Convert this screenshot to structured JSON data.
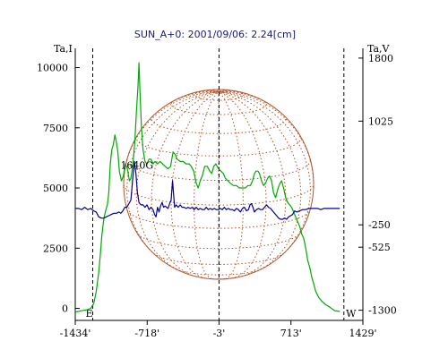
{
  "chart_data": {
    "type": "line",
    "title": "SUN_A+0: 2001/09/06: 2.24[cm]",
    "left_axis": {
      "label": "Ta,I",
      "ticks": [
        0,
        2500,
        5000,
        7500,
        10000
      ],
      "range": [
        -500,
        10800
      ]
    },
    "right_axis": {
      "label": "Ta,V",
      "ticks": [
        1800,
        1025,
        -250,
        -525,
        -1300
      ],
      "range": [
        -1425,
        1920
      ]
    },
    "x_axis": {
      "ticks": [
        "-1434'",
        "-718'",
        "-3'",
        "713'",
        "1429'"
      ],
      "tick_values": [
        -1434,
        -718,
        -3,
        713,
        1429
      ],
      "range": [
        -1434,
        1429
      ]
    },
    "limb_markers": [
      {
        "x": -1260,
        "label": "E"
      },
      {
        "x": -3,
        "label": ""
      },
      {
        "x": 1240,
        "label": "W"
      }
    ],
    "annotations": [
      {
        "text": "1640G",
        "x": -820,
        "y": 5800
      }
    ],
    "colors": {
      "intensity": "#00aa00",
      "polarization": "#000099",
      "disk": "#b0552a",
      "title": "#1a1a7a"
    },
    "series": [
      {
        "axis": "left",
        "color": "#00aa00",
        "points": [
          [
            -1434,
            -150
          ],
          [
            -1370,
            -100
          ],
          [
            -1320,
            -60
          ],
          [
            -1280,
            0
          ],
          [
            -1250,
            200
          ],
          [
            -1225,
            700
          ],
          [
            -1200,
            1500
          ],
          [
            -1185,
            2200
          ],
          [
            -1170,
            3000
          ],
          [
            -1150,
            3700
          ],
          [
            -1135,
            4000
          ],
          [
            -1115,
            4300
          ],
          [
            -1100,
            4800
          ],
          [
            -1085,
            6000
          ],
          [
            -1070,
            6600
          ],
          [
            -1055,
            6800
          ],
          [
            -1040,
            7200
          ],
          [
            -1025,
            6900
          ],
          [
            -1010,
            6500
          ],
          [
            -995,
            5700
          ],
          [
            -975,
            5300
          ],
          [
            -955,
            5500
          ],
          [
            -935,
            6000
          ],
          [
            -915,
            5800
          ],
          [
            -895,
            5300
          ],
          [
            -880,
            5400
          ],
          [
            -860,
            6000
          ],
          [
            -840,
            7000
          ],
          [
            -825,
            8200
          ],
          [
            -810,
            9200
          ],
          [
            -800,
            10200
          ],
          [
            -790,
            9000
          ],
          [
            -775,
            7500
          ],
          [
            -760,
            6600
          ],
          [
            -740,
            6100
          ],
          [
            -720,
            6000
          ],
          [
            -700,
            6200
          ],
          [
            -680,
            6200
          ],
          [
            -660,
            6000
          ],
          [
            -640,
            6100
          ],
          [
            -615,
            6000
          ],
          [
            -590,
            6100
          ],
          [
            -565,
            6000
          ],
          [
            -540,
            5900
          ],
          [
            -510,
            5800
          ],
          [
            -485,
            5900
          ],
          [
            -460,
            6500
          ],
          [
            -440,
            6400
          ],
          [
            -420,
            6200
          ],
          [
            -390,
            6100
          ],
          [
            -360,
            6100
          ],
          [
            -330,
            6000
          ],
          [
            -300,
            6000
          ],
          [
            -280,
            5900
          ],
          [
            -255,
            5700
          ],
          [
            -230,
            5200
          ],
          [
            -210,
            5000
          ],
          [
            -190,
            5300
          ],
          [
            -170,
            5500
          ],
          [
            -145,
            5900
          ],
          [
            -120,
            5900
          ],
          [
            -95,
            5700
          ],
          [
            -75,
            5600
          ],
          [
            -55,
            5900
          ],
          [
            -35,
            6000
          ],
          [
            -10,
            5800
          ],
          [
            15,
            5700
          ],
          [
            40,
            5600
          ],
          [
            60,
            5400
          ],
          [
            85,
            5300
          ],
          [
            110,
            5200
          ],
          [
            140,
            5100
          ],
          [
            170,
            5100
          ],
          [
            200,
            5000
          ],
          [
            230,
            5000
          ],
          [
            260,
            5000
          ],
          [
            285,
            5100
          ],
          [
            310,
            5100
          ],
          [
            330,
            5300
          ],
          [
            350,
            5600
          ],
          [
            365,
            5700
          ],
          [
            385,
            5700
          ],
          [
            400,
            5600
          ],
          [
            420,
            5300
          ],
          [
            440,
            5100
          ],
          [
            460,
            5200
          ],
          [
            480,
            5400
          ],
          [
            500,
            5500
          ],
          [
            520,
            5300
          ],
          [
            540,
            4800
          ],
          [
            560,
            4600
          ],
          [
            585,
            5000
          ],
          [
            605,
            5200
          ],
          [
            620,
            5300
          ],
          [
            640,
            5000
          ],
          [
            660,
            4600
          ],
          [
            680,
            4400
          ],
          [
            700,
            4300
          ],
          [
            720,
            4200
          ],
          [
            740,
            4000
          ],
          [
            760,
            3800
          ],
          [
            780,
            3600
          ],
          [
            800,
            3400
          ],
          [
            820,
            3100
          ],
          [
            840,
            2900
          ],
          [
            860,
            2500
          ],
          [
            880,
            2000
          ],
          [
            900,
            1700
          ],
          [
            920,
            1300
          ],
          [
            940,
            1000
          ],
          [
            960,
            700
          ],
          [
            990,
            450
          ],
          [
            1020,
            300
          ],
          [
            1060,
            150
          ],
          [
            1100,
            50
          ],
          [
            1150,
            -100
          ],
          [
            1200,
            -130
          ]
        ]
      },
      {
        "axis": "left",
        "color": "#000099",
        "points": [
          [
            -1434,
            4150
          ],
          [
            -1400,
            4150
          ],
          [
            -1370,
            4100
          ],
          [
            -1340,
            4200
          ],
          [
            -1310,
            4100
          ],
          [
            -1280,
            4150
          ],
          [
            -1250,
            4050
          ],
          [
            -1225,
            4000
          ],
          [
            -1200,
            3800
          ],
          [
            -1175,
            3750
          ],
          [
            -1150,
            3750
          ],
          [
            -1125,
            3800
          ],
          [
            -1100,
            3850
          ],
          [
            -1075,
            3900
          ],
          [
            -1050,
            3950
          ],
          [
            -1025,
            3950
          ],
          [
            -1000,
            4000
          ],
          [
            -980,
            3950
          ],
          [
            -960,
            4050
          ],
          [
            -940,
            4200
          ],
          [
            -920,
            4200
          ],
          [
            -900,
            4350
          ],
          [
            -880,
            4500
          ],
          [
            -860,
            5500
          ],
          [
            -845,
            6100
          ],
          [
            -830,
            5600
          ],
          [
            -815,
            4800
          ],
          [
            -800,
            4400
          ],
          [
            -780,
            4300
          ],
          [
            -760,
            4300
          ],
          [
            -740,
            4200
          ],
          [
            -720,
            4300
          ],
          [
            -700,
            4100
          ],
          [
            -680,
            4200
          ],
          [
            -660,
            4100
          ],
          [
            -645,
            3900
          ],
          [
            -630,
            3800
          ],
          [
            -615,
            4200
          ],
          [
            -600,
            4000
          ],
          [
            -585,
            4250
          ],
          [
            -570,
            4400
          ],
          [
            -555,
            4200
          ],
          [
            -540,
            4250
          ],
          [
            -525,
            4200
          ],
          [
            -510,
            4150
          ],
          [
            -495,
            4350
          ],
          [
            -480,
            4500
          ],
          [
            -465,
            5300
          ],
          [
            -455,
            4700
          ],
          [
            -445,
            4200
          ],
          [
            -430,
            4300
          ],
          [
            -410,
            4200
          ],
          [
            -390,
            4300
          ],
          [
            -370,
            4200
          ],
          [
            -350,
            4200
          ],
          [
            -330,
            4150
          ],
          [
            -310,
            4200
          ],
          [
            -290,
            4150
          ],
          [
            -270,
            4200
          ],
          [
            -250,
            4100
          ],
          [
            -230,
            4200
          ],
          [
            -210,
            4100
          ],
          [
            -190,
            4150
          ],
          [
            -170,
            4100
          ],
          [
            -150,
            4100
          ],
          [
            -130,
            4200
          ],
          [
            -110,
            4100
          ],
          [
            -90,
            4150
          ],
          [
            -70,
            4100
          ],
          [
            -50,
            4150
          ],
          [
            -30,
            4100
          ],
          [
            -10,
            4100
          ],
          [
            10,
            4150
          ],
          [
            30,
            4100
          ],
          [
            50,
            4200
          ],
          [
            70,
            4100
          ],
          [
            90,
            4150
          ],
          [
            110,
            4100
          ],
          [
            130,
            4100
          ],
          [
            150,
            4050
          ],
          [
            170,
            4150
          ],
          [
            190,
            4100
          ],
          [
            210,
            4000
          ],
          [
            230,
            4150
          ],
          [
            250,
            4200
          ],
          [
            270,
            4050
          ],
          [
            290,
            4100
          ],
          [
            305,
            4300
          ],
          [
            320,
            4350
          ],
          [
            335,
            4200
          ],
          [
            350,
            4000
          ],
          [
            370,
            4100
          ],
          [
            390,
            4150
          ],
          [
            410,
            4100
          ],
          [
            430,
            4100
          ],
          [
            450,
            4200
          ],
          [
            470,
            4300
          ],
          [
            490,
            4200
          ],
          [
            510,
            4150
          ],
          [
            530,
            4050
          ],
          [
            550,
            3950
          ],
          [
            570,
            3850
          ],
          [
            590,
            3750
          ],
          [
            610,
            3700
          ],
          [
            630,
            3700
          ],
          [
            650,
            3750
          ],
          [
            670,
            3700
          ],
          [
            690,
            3800
          ],
          [
            710,
            3850
          ],
          [
            730,
            3900
          ],
          [
            750,
            4050
          ],
          [
            770,
            4000
          ],
          [
            800,
            4050
          ],
          [
            830,
            4100
          ],
          [
            860,
            4100
          ],
          [
            890,
            4150
          ],
          [
            920,
            4150
          ],
          [
            950,
            4150
          ],
          [
            980,
            4150
          ],
          [
            1010,
            4100
          ],
          [
            1040,
            4150
          ],
          [
            1070,
            4150
          ],
          [
            1100,
            4150
          ],
          [
            1130,
            4150
          ],
          [
            1160,
            4150
          ],
          [
            1200,
            4150
          ]
        ]
      }
    ]
  }
}
